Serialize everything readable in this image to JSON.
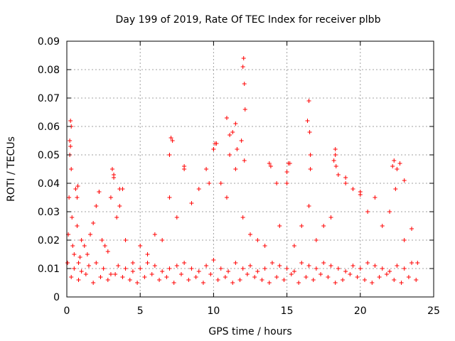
{
  "chart_data": {
    "type": "scatter",
    "title": "Day 199 of 2019, Rate Of TEC Index for receiver plbb",
    "xlabel": "GPS time / hours",
    "ylabel": "ROTI / TECUs",
    "xlim": [
      0,
      25
    ],
    "ylim": [
      0,
      0.09
    ],
    "xticks": [
      0,
      5,
      10,
      15,
      20,
      25
    ],
    "xtick_labels": [
      "0",
      "5",
      "10",
      "15",
      "20",
      "25"
    ],
    "yticks": [
      0,
      0.01,
      0.02,
      0.03,
      0.04,
      0.05,
      0.06,
      0.07,
      0.08,
      0.09
    ],
    "ytick_labels": [
      "0",
      "0.01",
      "0.02",
      "0.03",
      "0.04",
      "0.05",
      "0.06",
      "0.07",
      "0.08",
      "0.09"
    ],
    "grid": true,
    "marker": "+",
    "color": "#ff0000",
    "series": [
      {
        "name": "ROTI",
        "x": [
          0.05,
          0.1,
          0.15,
          0.2,
          0.25,
          0.3,
          0.35,
          0.4,
          0.5,
          0.6,
          0.7,
          0.8,
          0.9,
          1.0,
          1.2,
          1.4,
          1.6,
          1.8,
          2.0,
          2.2,
          2.4,
          2.6,
          2.8,
          3.0,
          3.2,
          3.4,
          3.6,
          3.8,
          4.0,
          4.5,
          5.0,
          5.5,
          6.0,
          6.5,
          7.0,
          7.2,
          7.5,
          8.0,
          8.5,
          9.0,
          9.5,
          10.0,
          10.2,
          10.5,
          10.9,
          11.1,
          11.5,
          12.0,
          12.1,
          12.5,
          13.0,
          13.5,
          13.9,
          14.5,
          15.0,
          15.1,
          15.5,
          16.0,
          16.5,
          16.6,
          17.0,
          17.5,
          18.0,
          18.3,
          18.5,
          19.0,
          19.5,
          20.0,
          20.5,
          21.0,
          21.5,
          22.0,
          22.5,
          22.7,
          23.0,
          23.5,
          23.9,
          0.2,
          0.25,
          0.3,
          0.7,
          0.75,
          2.2,
          3.1,
          3.2,
          3.6,
          7.0,
          7.1,
          8.0,
          9.7,
          10.0,
          10.1,
          10.9,
          11.1,
          11.3,
          11.5,
          11.6,
          11.9,
          12.0,
          12.05,
          12.1,
          12.15,
          13.8,
          14.3,
          15.0,
          15.2,
          16.4,
          16.5,
          16.55,
          16.6,
          18.2,
          18.3,
          18.35,
          19.0,
          19.5,
          20.0,
          22.2,
          22.3,
          22.4,
          23.0,
          0.5,
          1.0,
          1.5,
          2.0,
          2.5,
          3.0,
          3.5,
          4.0,
          4.5,
          5.0,
          5.5,
          6.0,
          6.5,
          7.0,
          7.5,
          8.0,
          8.5,
          9.0,
          9.5,
          10.0,
          10.5,
          11.0,
          11.5,
          12.0,
          12.5,
          13.0,
          13.5,
          14.0,
          14.5,
          15.0,
          15.5,
          16.0,
          16.5,
          17.0,
          17.5,
          18.0,
          18.5,
          19.0,
          19.5,
          20.0,
          20.5,
          21.0,
          21.5,
          22.0,
          22.5,
          23.0,
          23.5,
          0.3,
          0.8,
          1.3,
          1.8,
          2.3,
          2.8,
          3.3,
          3.8,
          4.3,
          4.8,
          5.3,
          5.8,
          6.3,
          6.8,
          7.3,
          7.8,
          8.3,
          8.8,
          9.3,
          9.8,
          10.3,
          10.8,
          11.3,
          11.8,
          12.3,
          12.8,
          13.3,
          13.8,
          14.3,
          14.8,
          15.3,
          15.8,
          16.3,
          16.8,
          17.3,
          17.8,
          18.3,
          18.8,
          19.3,
          19.8,
          20.3,
          20.8,
          21.3,
          21.8,
          22.3,
          22.8,
          23.3,
          23.8
        ],
        "y": [
          0.012,
          0.022,
          0.035,
          0.055,
          0.062,
          0.045,
          0.028,
          0.018,
          0.015,
          0.038,
          0.025,
          0.012,
          0.014,
          0.02,
          0.018,
          0.015,
          0.022,
          0.026,
          0.032,
          0.037,
          0.02,
          0.018,
          0.016,
          0.035,
          0.043,
          0.028,
          0.032,
          0.038,
          0.02,
          0.012,
          0.018,
          0.015,
          0.022,
          0.02,
          0.035,
          0.055,
          0.028,
          0.045,
          0.033,
          0.038,
          0.045,
          0.052,
          0.054,
          0.04,
          0.035,
          0.05,
          0.045,
          0.028,
          0.048,
          0.022,
          0.02,
          0.018,
          0.046,
          0.025,
          0.04,
          0.047,
          0.018,
          0.025,
          0.032,
          0.045,
          0.02,
          0.025,
          0.028,
          0.05,
          0.043,
          0.04,
          0.038,
          0.036,
          0.03,
          0.035,
          0.025,
          0.03,
          0.045,
          0.047,
          0.02,
          0.024,
          0.012,
          0.05,
          0.053,
          0.06,
          0.035,
          0.039,
          0.037,
          0.045,
          0.042,
          0.038,
          0.05,
          0.056,
          0.046,
          0.04,
          0.052,
          0.054,
          0.063,
          0.057,
          0.058,
          0.061,
          0.052,
          0.055,
          0.081,
          0.084,
          0.075,
          0.066,
          0.047,
          0.04,
          0.044,
          0.047,
          0.062,
          0.069,
          0.058,
          0.05,
          0.048,
          0.052,
          0.046,
          0.042,
          0.038,
          0.037,
          0.046,
          0.048,
          0.038,
          0.041,
          0.01,
          0.009,
          0.011,
          0.012,
          0.01,
          0.008,
          0.011,
          0.01,
          0.009,
          0.01,
          0.012,
          0.011,
          0.009,
          0.01,
          0.011,
          0.012,
          0.01,
          0.009,
          0.011,
          0.013,
          0.01,
          0.009,
          0.012,
          0.01,
          0.011,
          0.009,
          0.01,
          0.012,
          0.011,
          0.01,
          0.009,
          0.012,
          0.011,
          0.01,
          0.012,
          0.011,
          0.01,
          0.009,
          0.011,
          0.01,
          0.012,
          0.011,
          0.01,
          0.009,
          0.011,
          0.01,
          0.012,
          0.007,
          0.006,
          0.008,
          0.005,
          0.007,
          0.006,
          0.008,
          0.007,
          0.006,
          0.005,
          0.007,
          0.008,
          0.006,
          0.007,
          0.005,
          0.008,
          0.006,
          0.007,
          0.005,
          0.008,
          0.006,
          0.007,
          0.005,
          0.006,
          0.008,
          0.007,
          0.006,
          0.005,
          0.007,
          0.006,
          0.008,
          0.005,
          0.007,
          0.006,
          0.008,
          0.007,
          0.005,
          0.006,
          0.008,
          0.007,
          0.006,
          0.005,
          0.007,
          0.008,
          0.006,
          0.005,
          0.007,
          0.006
        ]
      }
    ]
  }
}
